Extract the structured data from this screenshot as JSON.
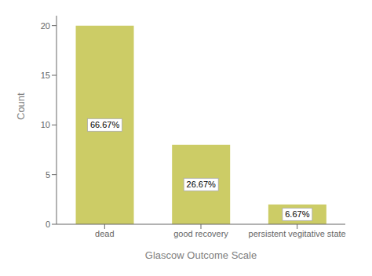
{
  "chart_data": {
    "type": "bar",
    "categories": [
      "dead",
      "good recovery",
      "persistent vegitative state"
    ],
    "values": [
      20,
      8,
      2
    ],
    "annotations": [
      "66.67%",
      "26.67%",
      "6.67%"
    ],
    "xlabel": "Glascow Outcome Scale",
    "ylabel": "Count",
    "color": "#cccc66",
    "ylim": [
      0,
      21
    ],
    "yticks": [
      0,
      5,
      10,
      15,
      20
    ],
    "grid": false
  }
}
